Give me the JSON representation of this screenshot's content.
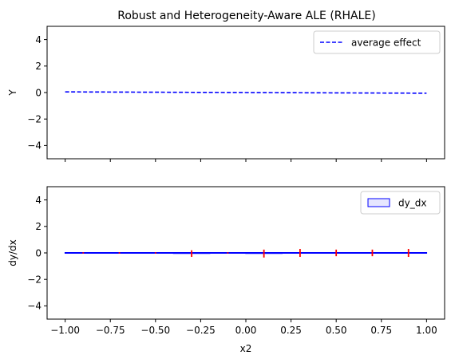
{
  "title": "Robust and Heterogeneity-Aware ALE (RHALE)",
  "chart_data": [
    {
      "type": "line",
      "panel": "top",
      "title": "Robust and Heterogeneity-Aware ALE (RHALE)",
      "xlabel": "",
      "ylabel": "Y",
      "xlim": [
        -1.1,
        1.1
      ],
      "ylim": [
        -5,
        5
      ],
      "xticks": [
        -1.0,
        -0.75,
        -0.5,
        -0.25,
        0.0,
        0.25,
        0.5,
        0.75,
        1.0
      ],
      "xtick_labels_visible": false,
      "yticks": [
        -4,
        -2,
        0,
        2,
        4
      ],
      "ytick_labels": [
        "−4",
        "−2",
        "0",
        "2",
        "4"
      ],
      "legend_position": "top-right",
      "series": [
        {
          "name": "average effect",
          "style": "dashed",
          "color": "#0000ff",
          "x": [
            -1.0,
            1.0
          ],
          "y": [
            0.05,
            -0.05
          ]
        }
      ]
    },
    {
      "type": "bar",
      "panel": "bottom",
      "xlabel": "x2",
      "ylabel": "dy/dx",
      "xlim": [
        -1.1,
        1.1
      ],
      "ylim": [
        -5,
        5
      ],
      "xticks": [
        -1.0,
        -0.75,
        -0.5,
        -0.25,
        0.0,
        0.25,
        0.5,
        0.75,
        1.0
      ],
      "xtick_labels": [
        "−1.00",
        "−0.75",
        "−0.50",
        "−0.25",
        "0.00",
        "0.25",
        "0.50",
        "0.75",
        "1.00"
      ],
      "yticks": [
        -4,
        -2,
        0,
        2,
        4
      ],
      "ytick_labels": [
        "−4",
        "−2",
        "0",
        "2",
        "4"
      ],
      "legend_position": "top-right",
      "legend_entry": "dy_dx",
      "bar_color": "#0000ff",
      "errorbar_color": "#ff0000",
      "bins": [
        {
          "left": -1.0,
          "right": -0.8,
          "value": 0.0,
          "std": 0.05
        },
        {
          "left": -0.8,
          "right": -0.6,
          "value": 0.0,
          "std": 0.05
        },
        {
          "left": -0.6,
          "right": -0.4,
          "value": 0.0,
          "std": 0.05
        },
        {
          "left": -0.4,
          "right": -0.2,
          "value": -0.05,
          "std": 0.25
        },
        {
          "left": -0.2,
          "right": 0.0,
          "value": 0.0,
          "std": 0.05
        },
        {
          "left": 0.0,
          "right": 0.2,
          "value": -0.05,
          "std": 0.3
        },
        {
          "left": 0.2,
          "right": 0.4,
          "value": 0.0,
          "std": 0.3
        },
        {
          "left": 0.4,
          "right": 0.6,
          "value": 0.0,
          "std": 0.25
        },
        {
          "left": 0.6,
          "right": 0.8,
          "value": 0.0,
          "std": 0.25
        },
        {
          "left": 0.8,
          "right": 1.0,
          "value": 0.0,
          "std": 0.3
        }
      ]
    }
  ]
}
